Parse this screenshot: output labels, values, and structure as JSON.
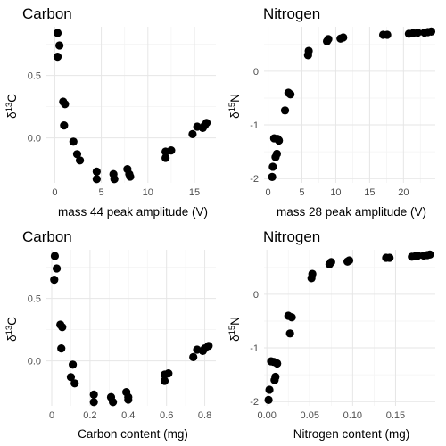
{
  "chart_data": [
    {
      "type": "scatter",
      "title": "Carbon",
      "xlabel": "mass 44 peak amplitude (V)",
      "ylabel": {
        "base": "δ",
        "sup": "13",
        "rest": "C"
      },
      "xlim": [
        -0.9,
        17.3
      ],
      "ylim": [
        -0.36,
        0.89
      ],
      "xticks": [
        0,
        5,
        10,
        15
      ],
      "yticks": [
        -0.5,
        0,
        0.5
      ],
      "ytick_labels": [
        "",
        "0.0",
        "0.5"
      ],
      "grid": true,
      "points": [
        {
          "x": 0.3,
          "y": 0.84
        },
        {
          "x": 0.5,
          "y": 0.74
        },
        {
          "x": 0.3,
          "y": 0.65
        },
        {
          "x": 0.9,
          "y": 0.29
        },
        {
          "x": 1.1,
          "y": 0.27
        },
        {
          "x": 1.0,
          "y": 0.1
        },
        {
          "x": 2.0,
          "y": -0.03
        },
        {
          "x": 2.4,
          "y": -0.13
        },
        {
          "x": 2.7,
          "y": -0.18
        },
        {
          "x": 4.5,
          "y": -0.27
        },
        {
          "x": 4.5,
          "y": -0.33
        },
        {
          "x": 6.3,
          "y": -0.29
        },
        {
          "x": 6.4,
          "y": -0.33
        },
        {
          "x": 7.8,
          "y": -0.25
        },
        {
          "x": 8.0,
          "y": -0.29
        },
        {
          "x": 8.1,
          "y": -0.31
        },
        {
          "x": 11.9,
          "y": -0.11
        },
        {
          "x": 11.9,
          "y": -0.16
        },
        {
          "x": 12.5,
          "y": -0.1
        },
        {
          "x": 14.8,
          "y": 0.03
        },
        {
          "x": 15.3,
          "y": 0.09
        },
        {
          "x": 15.9,
          "y": 0.08
        },
        {
          "x": 16.1,
          "y": 0.1
        },
        {
          "x": 16.3,
          "y": 0.12
        }
      ]
    },
    {
      "type": "scatter",
      "title": "Nitrogen",
      "xlabel": "mass 28 peak amplitude (V)",
      "ylabel": {
        "base": "δ",
        "sup": "15",
        "rest": "N"
      },
      "xlim": [
        -0.6,
        24.7
      ],
      "ylim": [
        -2.08,
        0.83
      ],
      "xticks": [
        0,
        5,
        10,
        15,
        20,
        25
      ],
      "yticks": [
        -2,
        -1,
        0
      ],
      "ytick_labels": [
        "-2",
        "-1",
        "0"
      ],
      "grid": true,
      "points": [
        {
          "x": 0.6,
          "y": -1.97
        },
        {
          "x": 0.7,
          "y": -1.78
        },
        {
          "x": 0.9,
          "y": -1.25
        },
        {
          "x": 1.1,
          "y": -1.6
        },
        {
          "x": 1.3,
          "y": -1.54
        },
        {
          "x": 1.4,
          "y": -1.26
        },
        {
          "x": 1.6,
          "y": -1.29
        },
        {
          "x": 2.5,
          "y": -0.73
        },
        {
          "x": 3.0,
          "y": -0.4
        },
        {
          "x": 3.3,
          "y": -0.43
        },
        {
          "x": 5.9,
          "y": 0.3
        },
        {
          "x": 6.0,
          "y": 0.38
        },
        {
          "x": 8.7,
          "y": 0.56
        },
        {
          "x": 8.9,
          "y": 0.6
        },
        {
          "x": 10.7,
          "y": 0.61
        },
        {
          "x": 11.1,
          "y": 0.63
        },
        {
          "x": 17.0,
          "y": 0.68
        },
        {
          "x": 17.6,
          "y": 0.68
        },
        {
          "x": 20.8,
          "y": 0.7
        },
        {
          "x": 21.4,
          "y": 0.71
        },
        {
          "x": 22.1,
          "y": 0.72
        },
        {
          "x": 23.1,
          "y": 0.72
        },
        {
          "x": 23.6,
          "y": 0.73
        },
        {
          "x": 24.1,
          "y": 0.74
        }
      ]
    },
    {
      "type": "scatter",
      "title": "Carbon",
      "xlabel": "Carbon content (mg)",
      "ylabel": {
        "base": "δ",
        "sup": "13",
        "rest": "C"
      },
      "xlim": [
        -0.028,
        0.858
      ],
      "ylim": [
        -0.36,
        0.89
      ],
      "xticks": [
        0.0,
        0.2,
        0.4,
        0.6,
        0.8
      ],
      "yticks": [
        -0.5,
        0,
        0.5
      ],
      "ytick_labels": [
        "",
        "0.0",
        "0.5"
      ],
      "grid": true,
      "points": [
        {
          "x": 0.016,
          "y": 0.84
        },
        {
          "x": 0.026,
          "y": 0.74
        },
        {
          "x": 0.013,
          "y": 0.65
        },
        {
          "x": 0.045,
          "y": 0.29
        },
        {
          "x": 0.055,
          "y": 0.27
        },
        {
          "x": 0.05,
          "y": 0.1
        },
        {
          "x": 0.11,
          "y": -0.03
        },
        {
          "x": 0.1,
          "y": -0.13
        },
        {
          "x": 0.12,
          "y": -0.18
        },
        {
          "x": 0.22,
          "y": -0.27
        },
        {
          "x": 0.22,
          "y": -0.33
        },
        {
          "x": 0.31,
          "y": -0.29
        },
        {
          "x": 0.32,
          "y": -0.33
        },
        {
          "x": 0.39,
          "y": -0.25
        },
        {
          "x": 0.4,
          "y": -0.29
        },
        {
          "x": 0.4,
          "y": -0.31
        },
        {
          "x": 0.59,
          "y": -0.11
        },
        {
          "x": 0.59,
          "y": -0.16
        },
        {
          "x": 0.61,
          "y": -0.1
        },
        {
          "x": 0.74,
          "y": 0.03
        },
        {
          "x": 0.76,
          "y": 0.09
        },
        {
          "x": 0.79,
          "y": 0.08
        },
        {
          "x": 0.8,
          "y": 0.1
        },
        {
          "x": 0.82,
          "y": 0.12
        }
      ]
    },
    {
      "type": "scatter",
      "title": "Nitrogen",
      "xlabel": "Nitrogen content (mg)",
      "ylabel": {
        "base": "δ",
        "sup": "15",
        "rest": "N"
      },
      "xlim": [
        -0.0033,
        0.1963
      ],
      "ylim": [
        -2.08,
        0.83
      ],
      "xticks": [
        0.0,
        0.05,
        0.1,
        0.15,
        0.2
      ],
      "xtick_labels": [
        "0.00",
        "0.05",
        "0.10",
        "0.15",
        "0.20"
      ],
      "yticks": [
        -2,
        -1,
        0
      ],
      "ytick_labels": [
        "-2",
        "-1",
        "0"
      ],
      "grid": true,
      "points": [
        {
          "x": 0.002,
          "y": -1.97
        },
        {
          "x": 0.003,
          "y": -1.78
        },
        {
          "x": 0.005,
          "y": -1.25
        },
        {
          "x": 0.009,
          "y": -1.6
        },
        {
          "x": 0.01,
          "y": -1.54
        },
        {
          "x": 0.008,
          "y": -1.26
        },
        {
          "x": 0.012,
          "y": -1.29
        },
        {
          "x": 0.027,
          "y": -0.73
        },
        {
          "x": 0.025,
          "y": -0.4
        },
        {
          "x": 0.029,
          "y": -0.43
        },
        {
          "x": 0.052,
          "y": 0.3
        },
        {
          "x": 0.053,
          "y": 0.38
        },
        {
          "x": 0.073,
          "y": 0.56
        },
        {
          "x": 0.075,
          "y": 0.6
        },
        {
          "x": 0.094,
          "y": 0.61
        },
        {
          "x": 0.096,
          "y": 0.63
        },
        {
          "x": 0.139,
          "y": 0.68
        },
        {
          "x": 0.143,
          "y": 0.68
        },
        {
          "x": 0.169,
          "y": 0.7
        },
        {
          "x": 0.173,
          "y": 0.71
        },
        {
          "x": 0.176,
          "y": 0.72
        },
        {
          "x": 0.183,
          "y": 0.72
        },
        {
          "x": 0.187,
          "y": 0.73
        },
        {
          "x": 0.19,
          "y": 0.74
        }
      ]
    }
  ]
}
